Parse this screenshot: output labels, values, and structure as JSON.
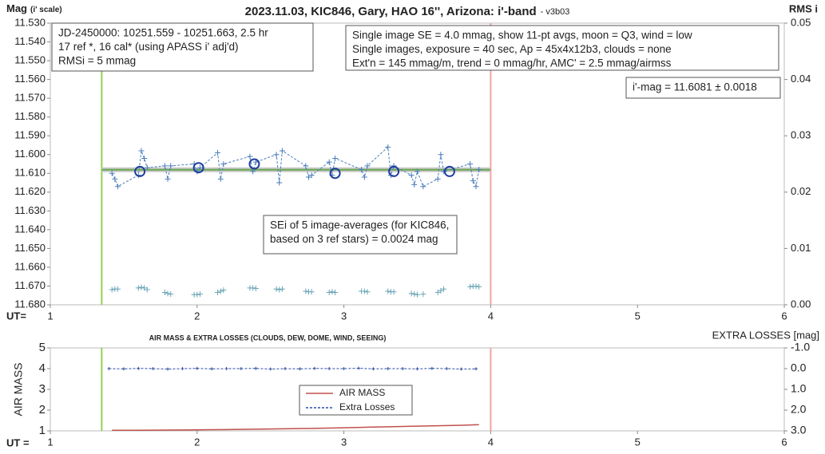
{
  "chart_data": [
    {
      "type": "line",
      "title": "2023.11.03, KIC846, Gary, HAO 16'', Arizona: i'-band",
      "subtitle": "- v3b03",
      "y_label": "Mag",
      "y_label_note": "(i' scale)",
      "y2_label": "RMS i",
      "x_label": "UT=",
      "xlim": [
        1,
        6
      ],
      "xticks": [
        1,
        2,
        3,
        4,
        5,
        6
      ],
      "ylim": [
        11.68,
        11.53
      ],
      "yticks": [
        {
          "value": 11.53,
          "label": "11.530"
        },
        {
          "value": 11.54,
          "label": "11.540"
        },
        {
          "value": 11.55,
          "label": "11.550"
        },
        {
          "value": 11.56,
          "label": "11.560"
        },
        {
          "value": 11.57,
          "label": "11.570"
        },
        {
          "value": 11.58,
          "label": "11.580"
        },
        {
          "value": 11.59,
          "label": "11.590"
        },
        {
          "value": 11.6,
          "label": "11.600"
        },
        {
          "value": 11.61,
          "label": "11.610"
        },
        {
          "value": 11.62,
          "label": "11.620"
        },
        {
          "value": 11.63,
          "label": "11.630"
        },
        {
          "value": 11.64,
          "label": "11.640"
        },
        {
          "value": 11.65,
          "label": "11.650"
        },
        {
          "value": 11.66,
          "label": "11.660"
        },
        {
          "value": 11.67,
          "label": "11.670"
        },
        {
          "value": 11.68,
          "label": "11.680"
        }
      ],
      "y2lim": [
        0,
        0.05
      ],
      "y2ticks": [
        {
          "value": 0,
          "label": "0.00"
        },
        {
          "value": 0.01,
          "label": "0.01"
        },
        {
          "value": 0.02,
          "label": "0.02"
        },
        {
          "value": 0.03,
          "label": "0.03"
        },
        {
          "value": 0.04,
          "label": "0.04"
        },
        {
          "value": 0.05,
          "label": "0.05"
        }
      ],
      "vlines": [
        {
          "x": 1.35,
          "color": "#92d050"
        },
        {
          "x": 4.0,
          "color": "#f4a3a3"
        }
      ],
      "fit": {
        "y": 11.6081,
        "x": [
          1.35,
          4.0
        ],
        "color": "#6aa84f"
      },
      "series": [
        {
          "color": "#4a7ebb",
          "line": "dashed",
          "marker": "plus",
          "x": [
            1.42,
            1.44,
            1.46,
            1.6,
            1.62,
            1.64,
            1.66,
            1.78,
            1.8,
            1.82,
            1.98,
            2.0,
            2.02,
            2.14,
            2.16,
            2.18,
            2.36,
            2.38,
            2.4,
            2.54,
            2.56,
            2.58,
            2.74,
            2.76,
            2.78,
            2.9,
            2.92,
            2.94,
            3.12,
            3.14,
            3.16,
            3.3,
            3.32,
            3.34,
            3.46,
            3.48,
            3.5,
            3.54,
            3.64,
            3.66,
            3.68,
            3.86,
            3.88,
            3.9,
            3.92
          ],
          "values": [
            11.61,
            11.613,
            11.617,
            11.611,
            11.598,
            11.602,
            11.607,
            11.606,
            11.613,
            11.606,
            11.605,
            11.609,
            11.607,
            11.599,
            11.613,
            11.605,
            11.601,
            11.609,
            11.604,
            11.6,
            11.615,
            11.598,
            11.606,
            11.612,
            11.611,
            11.604,
            11.611,
            11.602,
            11.608,
            11.612,
            11.606,
            11.596,
            11.611,
            11.606,
            11.611,
            11.616,
            11.609,
            11.617,
            11.613,
            11.6,
            11.609,
            11.605,
            11.614,
            11.617,
            11.608
          ]
        },
        {
          "color": "#1f3f9f",
          "line": "none",
          "marker": "circle",
          "x": [
            1.61,
            2.01,
            2.39,
            2.94,
            3.34,
            3.72
          ],
          "values": [
            11.609,
            11.607,
            11.605,
            11.61,
            11.609,
            11.609
          ]
        },
        {
          "color": "#6aa5b5",
          "line": "none",
          "marker": "plus",
          "axis": "y2",
          "x": [
            1.42,
            1.44,
            1.46,
            1.6,
            1.62,
            1.64,
            1.66,
            1.78,
            1.8,
            1.82,
            1.98,
            2.0,
            2.02,
            2.14,
            2.16,
            2.18,
            2.36,
            2.38,
            2.4,
            2.54,
            2.56,
            2.58,
            2.74,
            2.76,
            2.78,
            2.9,
            2.92,
            2.94,
            3.12,
            3.14,
            3.16,
            3.3,
            3.32,
            3.34,
            3.46,
            3.48,
            3.5,
            3.54,
            3.64,
            3.66,
            3.68,
            3.86,
            3.88,
            3.9,
            3.92
          ],
          "values": [
            0.0027,
            0.0028,
            0.0028,
            0.003,
            0.0031,
            0.003,
            0.0027,
            0.0022,
            0.002,
            0.0019,
            0.0018,
            0.0018,
            0.0019,
            0.0022,
            0.0024,
            0.0026,
            0.003,
            0.003,
            0.0029,
            0.0028,
            0.0027,
            0.0028,
            0.0024,
            0.0023,
            0.0023,
            0.0022,
            0.0023,
            0.0022,
            0.0024,
            0.0024,
            0.0023,
            0.0024,
            0.0023,
            0.0023,
            0.002,
            0.0019,
            0.0018,
            0.0019,
            0.0022,
            0.0025,
            0.0028,
            0.0032,
            0.0033,
            0.0033,
            0.0032
          ]
        }
      ],
      "annotations": [
        {
          "lines": [
            "JD-2450000: 10251.559 - 10251.663, 2.5  hr",
            "17 ref *, 16 cal* (using APASS i' adj'd)",
            "RMSi = 5 mmag"
          ]
        },
        {
          "lines": [
            "Single image SE = 4.0 mmag, show 11-pt avgs, moon = Q3, wind = low",
            "Single images, exposure = 40 sec, Ap = 45x4x12b3, clouds = none",
            "Ext'n = 145 mmag/m, trend = 0 mmag/hr, AMC' = 2.5 mmag/airmss"
          ]
        },
        {
          "lines": [
            "i'-mag = 11.6081 ± 0.0018"
          ]
        },
        {
          "lines": [
            "SEi of 5 image-averages (for KIC846,",
            "based on 3 ref stars) = 0.0024 mag"
          ]
        }
      ]
    },
    {
      "type": "line",
      "title": "AIR MASS & EXTRA LOSSES (CLOUDS, DEW, DOME, WIND, SEEING)",
      "y_label": "AIR MASS",
      "y2_label": "EXTRA LOSSES [mag]",
      "x_label": "UT =",
      "xlim": [
        1,
        6
      ],
      "xticks": [
        1,
        2,
        3,
        4,
        5,
        6
      ],
      "ylim": [
        1,
        5
      ],
      "yticks": [
        1,
        2,
        3,
        4,
        5
      ],
      "y2lim": [
        3.0,
        -1.0
      ],
      "y2ticks": [
        {
          "value": -1,
          "label": "-1.0"
        },
        {
          "value": 0,
          "label": "0.0"
        },
        {
          "value": 1,
          "label": "1.0"
        },
        {
          "value": 2,
          "label": "2.0"
        },
        {
          "value": 3,
          "label": "3.0"
        }
      ],
      "vlines": [
        {
          "x": 1.35,
          "color": "#92d050"
        },
        {
          "x": 4.0,
          "color": "#f4a3a3"
        }
      ],
      "legend": "center",
      "series": [
        {
          "name": "AIR MASS",
          "color": "#c0504d",
          "line": "solid",
          "marker": "none",
          "x": [
            1.42,
            1.6,
            1.8,
            2.0,
            2.2,
            2.4,
            2.6,
            2.8,
            3.0,
            3.2,
            3.4,
            3.6,
            3.8,
            3.92
          ],
          "values": [
            1.03,
            1.03,
            1.04,
            1.05,
            1.06,
            1.08,
            1.1,
            1.12,
            1.15,
            1.18,
            1.21,
            1.24,
            1.27,
            1.3
          ]
        },
        {
          "name": "Extra Losses",
          "color": "#2e4ea0",
          "line": "dashed",
          "marker": "plus",
          "axis": "y2",
          "x": [
            1.4,
            1.5,
            1.6,
            1.7,
            1.8,
            1.9,
            2.0,
            2.1,
            2.2,
            2.3,
            2.4,
            2.5,
            2.6,
            2.7,
            2.8,
            2.9,
            3.0,
            3.1,
            3.2,
            3.3,
            3.4,
            3.5,
            3.6,
            3.7,
            3.8,
            3.9
          ],
          "values": [
            0.0,
            0.01,
            -0.01,
            0.0,
            0.02,
            0.0,
            -0.01,
            0.01,
            0.0,
            0.0,
            -0.01,
            0.02,
            0.0,
            0.01,
            -0.01,
            0.0,
            0.0,
            -0.02,
            0.01,
            0.0,
            0.0,
            0.01,
            -0.01,
            0.0,
            0.02,
            0.01
          ]
        }
      ]
    }
  ]
}
